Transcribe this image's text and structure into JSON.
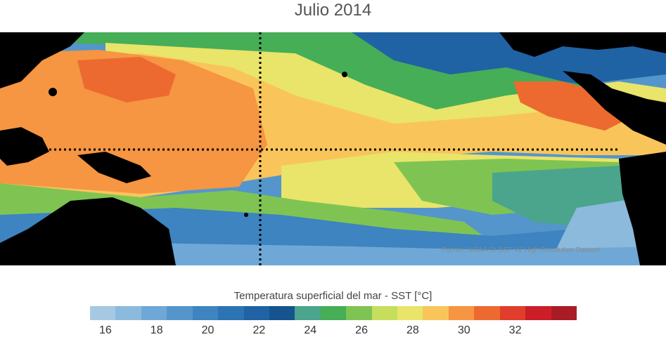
{
  "title": "Julio 2014",
  "source": "Fuente: NOAA OI SST V2 High Resolution Dataset",
  "colorbar": {
    "title": "Temperatura superficial del mar - SST  [°C]",
    "colors": [
      "#a6c9e2",
      "#8bbadc",
      "#6fa8d6",
      "#5496cb",
      "#3d84c0",
      "#2c73b4",
      "#1f63a4",
      "#15548f",
      "#4aa58c",
      "#45ae57",
      "#7fc452",
      "#c6de5e",
      "#e9e46a",
      "#f9c55a",
      "#f69542",
      "#ec6a30",
      "#e03e2a",
      "#cc1e28",
      "#a91c25"
    ],
    "ticks": [
      "16",
      "18",
      "20",
      "22",
      "24",
      "26",
      "28",
      "30",
      "32"
    ]
  },
  "map_colors": {
    "land": "#000000",
    "cool_blue": "#4c8ec9",
    "deep_blue": "#1f63a4",
    "light_blue": "#a6c9e2",
    "teal": "#4aa58c",
    "green": "#45ae57",
    "light_green": "#7fc452",
    "yellow": "#e9e46a",
    "light_orange": "#f9c55a",
    "orange": "#f69542",
    "red_orange": "#ec6a30",
    "dotted_lines": "#000000"
  }
}
